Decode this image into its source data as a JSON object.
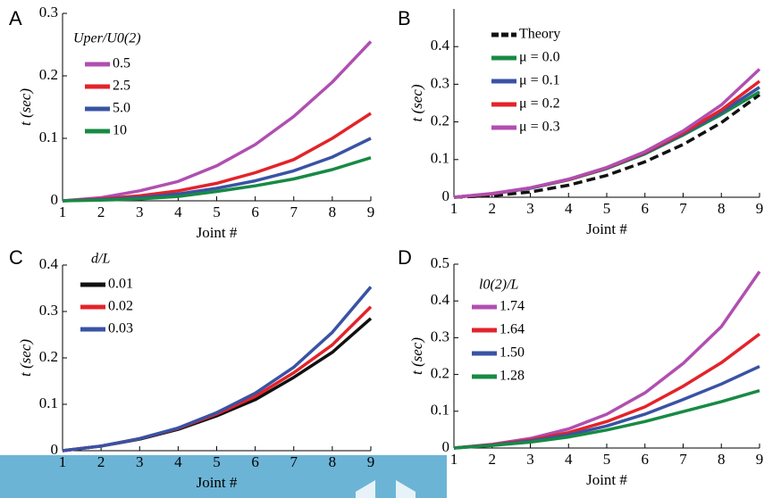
{
  "chart_data": [
    {
      "type": "line",
      "panel": "A",
      "xlabel": "Joint #",
      "ylabel": "t (sec)",
      "legend_title": "Uper/U0(2)",
      "x": [
        1,
        2,
        3,
        4,
        5,
        6,
        7,
        8,
        9
      ],
      "xlim": [
        1,
        9
      ],
      "xticks": [
        1,
        2,
        3,
        4,
        5,
        6,
        7,
        8,
        9
      ],
      "ylim": [
        0,
        0.3
      ],
      "yticks": [
        0,
        0.1,
        0.2,
        0.3
      ],
      "series": [
        {
          "name": "0.5",
          "color": "#b04fb0",
          "values": [
            0,
            0.005,
            0.016,
            0.031,
            0.056,
            0.09,
            0.135,
            0.19,
            0.255
          ]
        },
        {
          "name": "2.5",
          "color": "#e3232a",
          "values": [
            0,
            0.003,
            0.008,
            0.016,
            0.028,
            0.045,
            0.066,
            0.1,
            0.14
          ]
        },
        {
          "name": "5.0",
          "color": "#3953a4",
          "values": [
            0,
            0.002,
            0.005,
            0.011,
            0.02,
            0.032,
            0.048,
            0.07,
            0.1
          ]
        },
        {
          "name": "10",
          "color": "#178a44",
          "values": [
            0,
            0.001,
            0.003,
            0.007,
            0.015,
            0.024,
            0.035,
            0.05,
            0.069
          ]
        }
      ]
    },
    {
      "type": "line",
      "panel": "B",
      "xlabel": "Joint #",
      "ylabel": "t (sec)",
      "x": [
        1,
        2,
        3,
        4,
        5,
        6,
        7,
        8,
        9
      ],
      "xlim": [
        1,
        9
      ],
      "xticks": [
        1,
        2,
        3,
        4,
        5,
        6,
        7,
        8,
        9
      ],
      "ylim": [
        0,
        0.5
      ],
      "yticks": [
        0,
        0.1,
        0.2,
        0.3,
        0.4
      ],
      "series": [
        {
          "name": "Theory",
          "color": "#111111",
          "dashed": true,
          "values": [
            0,
            0.004,
            0.014,
            0.032,
            0.058,
            0.094,
            0.14,
            0.198,
            0.272
          ]
        },
        {
          "name": "μ = 0.0",
          "color": "#178a44",
          "values": [
            0,
            0.009,
            0.024,
            0.046,
            0.076,
            0.115,
            0.165,
            0.22,
            0.28
          ]
        },
        {
          "name": "μ = 0.1",
          "color": "#3953a4",
          "values": [
            0,
            0.009,
            0.024,
            0.047,
            0.077,
            0.117,
            0.168,
            0.226,
            0.292
          ]
        },
        {
          "name": "μ = 0.2",
          "color": "#e3232a",
          "values": [
            0,
            0.009,
            0.025,
            0.047,
            0.078,
            0.119,
            0.171,
            0.232,
            0.308
          ]
        },
        {
          "name": "μ = 0.3",
          "color": "#b04fb0",
          "values": [
            0,
            0.01,
            0.025,
            0.048,
            0.079,
            0.121,
            0.176,
            0.245,
            0.34
          ]
        }
      ]
    },
    {
      "type": "line",
      "panel": "C",
      "xlabel": "Joint #",
      "ylabel": "t (sec)",
      "legend_title": "d/L",
      "x": [
        1,
        2,
        3,
        4,
        5,
        6,
        7,
        8,
        9
      ],
      "xlim": [
        1,
        9
      ],
      "xticks": [
        1,
        2,
        3,
        4,
        5,
        6,
        7,
        8,
        9
      ],
      "ylim": [
        0,
        0.4
      ],
      "yticks": [
        0,
        0.1,
        0.2,
        0.3,
        0.4
      ],
      "series": [
        {
          "name": "0.01",
          "color": "#111111",
          "values": [
            0,
            0.01,
            0.025,
            0.046,
            0.075,
            0.11,
            0.158,
            0.212,
            0.285
          ]
        },
        {
          "name": "0.02",
          "color": "#e3232a",
          "values": [
            0,
            0.01,
            0.026,
            0.048,
            0.079,
            0.117,
            0.168,
            0.228,
            0.31
          ]
        },
        {
          "name": "0.03",
          "color": "#3953a4",
          "values": [
            0,
            0.01,
            0.026,
            0.049,
            0.082,
            0.124,
            0.18,
            0.255,
            0.353
          ]
        }
      ]
    },
    {
      "type": "line",
      "panel": "D",
      "xlabel": "Joint #",
      "ylabel": "t (sec)",
      "legend_title": "l0(2)/L",
      "x": [
        1,
        2,
        3,
        4,
        5,
        6,
        7,
        8,
        9
      ],
      "xlim": [
        1,
        9
      ],
      "xticks": [
        1,
        2,
        3,
        4,
        5,
        6,
        7,
        8,
        9
      ],
      "ylim": [
        0,
        0.5
      ],
      "yticks": [
        0,
        0.1,
        0.2,
        0.3,
        0.4,
        0.5
      ],
      "series": [
        {
          "name": "1.74",
          "color": "#b04fb0",
          "values": [
            0,
            0.01,
            0.026,
            0.052,
            0.092,
            0.15,
            0.23,
            0.33,
            0.48
          ]
        },
        {
          "name": "1.64",
          "color": "#e3232a",
          "values": [
            0,
            0.009,
            0.022,
            0.042,
            0.072,
            0.112,
            0.168,
            0.232,
            0.31
          ]
        },
        {
          "name": "1.50",
          "color": "#3953a4",
          "values": [
            0,
            0.008,
            0.019,
            0.036,
            0.06,
            0.092,
            0.132,
            0.174,
            0.222
          ]
        },
        {
          "name": "1.28",
          "color": "#178a44",
          "values": [
            0,
            0.007,
            0.016,
            0.03,
            0.049,
            0.072,
            0.099,
            0.126,
            0.156
          ]
        }
      ]
    }
  ]
}
